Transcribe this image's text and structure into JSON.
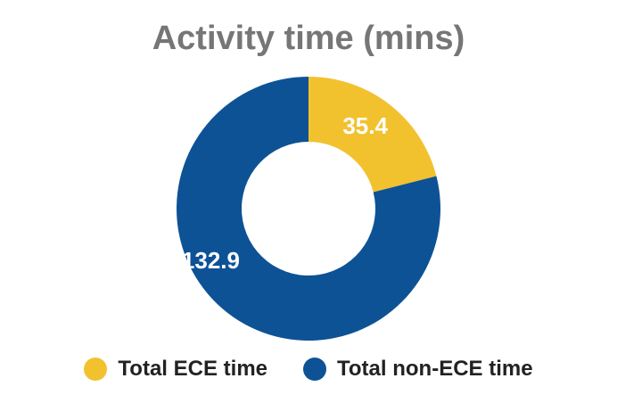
{
  "chart_data": {
    "type": "pie",
    "title": "Activity time (mins)",
    "categories": [
      "Total ECE time",
      "Total non-ECE time"
    ],
    "values": [
      35.4,
      132.9
    ],
    "data_labels": [
      "35.4",
      "132.9"
    ],
    "colors": [
      "#F2C12E",
      "#0D5295"
    ],
    "donut": true,
    "legend_position": "bottom"
  }
}
